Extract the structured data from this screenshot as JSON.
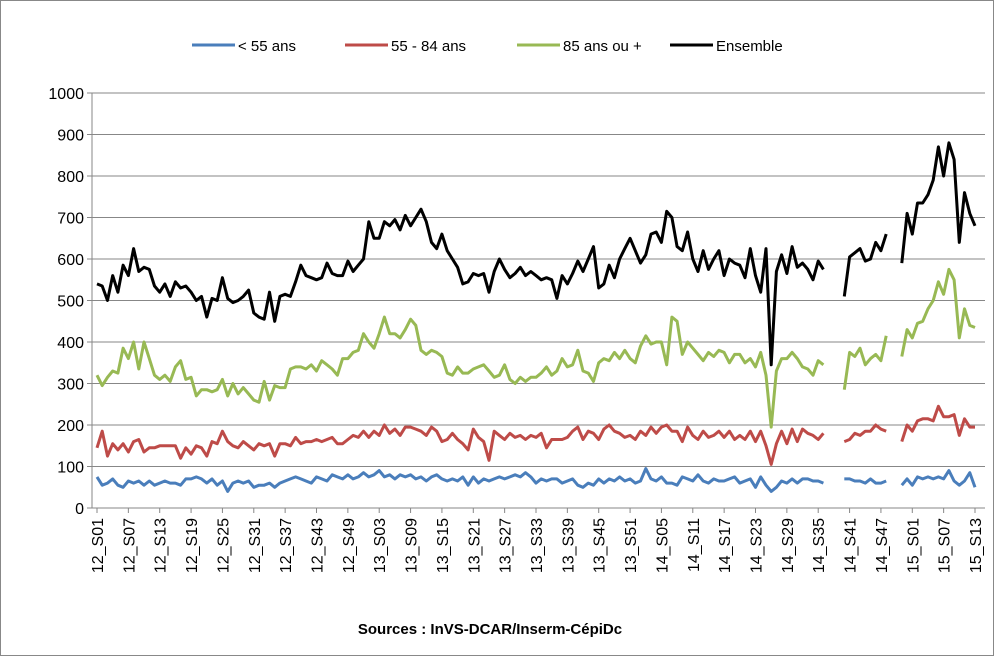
{
  "chart_data": {
    "type": "line",
    "source": "Sources : InVS-DCAR/Inserm-CépiDc",
    "categories": [
      "12_S01",
      null,
      null,
      null,
      null,
      null,
      "12_S07",
      null,
      null,
      null,
      null,
      null,
      "12_S13",
      null,
      null,
      null,
      null,
      null,
      "12_S19",
      null,
      null,
      null,
      null,
      null,
      "12_S25",
      null,
      null,
      null,
      null,
      null,
      "12_S31",
      null,
      null,
      null,
      null,
      null,
      "12_S37",
      null,
      null,
      null,
      null,
      null,
      "12_S43",
      null,
      null,
      null,
      null,
      null,
      "12_S49",
      null,
      null,
      null,
      null,
      null,
      "13_S03",
      null,
      null,
      null,
      null,
      null,
      "13_S09",
      null,
      null,
      null,
      null,
      null,
      "13_S15",
      null,
      null,
      null,
      null,
      null,
      "13_S21",
      null,
      null,
      null,
      null,
      null,
      "13_S27",
      null,
      null,
      null,
      null,
      null,
      "13_S33",
      null,
      null,
      null,
      null,
      null,
      "13_S39",
      null,
      null,
      null,
      null,
      null,
      "13_S45",
      null,
      null,
      null,
      null,
      null,
      "13_S51",
      null,
      null,
      null,
      null,
      null,
      "14_S05",
      null,
      null,
      null,
      null,
      null,
      "14_S11",
      null,
      null,
      null,
      null,
      null,
      "14_S17",
      null,
      null,
      null,
      null,
      null,
      "14_S23",
      null,
      null,
      null,
      null,
      null,
      "14_S29",
      null,
      null,
      null,
      null,
      null,
      "14_S35",
      null,
      null,
      null,
      null,
      null,
      "14_S41",
      null,
      null,
      null,
      null,
      null,
      "14_S47",
      null,
      null,
      null,
      null,
      null,
      "15_S01",
      null,
      null,
      null,
      null,
      null,
      "15_S07",
      null,
      null,
      null,
      null,
      null,
      "15_S13"
    ],
    "series": [
      {
        "name": "< 55 ans",
        "color": "#4a7ebb",
        "values": [
          75,
          55,
          60,
          70,
          55,
          50,
          65,
          60,
          65,
          55,
          65,
          55,
          60,
          65,
          60,
          60,
          55,
          70,
          70,
          75,
          70,
          60,
          70,
          55,
          65,
          40,
          60,
          65,
          60,
          65,
          50,
          55,
          55,
          60,
          50,
          60,
          65,
          70,
          75,
          70,
          65,
          60,
          75,
          70,
          65,
          80,
          75,
          70,
          80,
          70,
          75,
          85,
          75,
          80,
          90,
          75,
          80,
          70,
          80,
          75,
          80,
          70,
          75,
          65,
          75,
          80,
          70,
          65,
          70,
          65,
          75,
          55,
          75,
          60,
          70,
          65,
          70,
          75,
          70,
          75,
          80,
          75,
          85,
          75,
          60,
          70,
          65,
          70,
          70,
          60,
          65,
          70,
          55,
          50,
          60,
          55,
          70,
          60,
          70,
          65,
          75,
          65,
          70,
          60,
          65,
          95,
          70,
          65,
          75,
          60,
          60,
          55,
          75,
          70,
          65,
          80,
          65,
          60,
          70,
          65,
          65,
          70,
          75,
          60,
          65,
          70,
          50,
          75,
          55,
          40,
          50,
          65,
          60,
          70,
          60,
          70,
          70,
          65,
          65,
          60,
          null,
          null,
          null,
          70,
          70,
          65,
          65,
          60,
          70,
          60,
          60,
          65,
          null,
          null,
          55,
          70,
          55,
          75,
          70,
          75,
          70,
          75,
          70,
          90,
          65,
          55,
          65,
          85,
          50
        ]
      },
      {
        "name": "55 - 84 ans",
        "color": "#be4b48",
        "values": [
          145,
          185,
          125,
          155,
          140,
          155,
          135,
          160,
          165,
          135,
          145,
          145,
          150,
          150,
          150,
          150,
          120,
          145,
          130,
          150,
          145,
          125,
          160,
          155,
          185,
          160,
          150,
          145,
          160,
          150,
          140,
          155,
          150,
          155,
          125,
          155,
          155,
          150,
          170,
          155,
          160,
          160,
          165,
          160,
          165,
          170,
          155,
          155,
          165,
          175,
          170,
          185,
          170,
          185,
          175,
          200,
          180,
          190,
          175,
          195,
          195,
          190,
          185,
          175,
          195,
          185,
          160,
          165,
          180,
          165,
          155,
          140,
          190,
          170,
          160,
          115,
          185,
          175,
          165,
          180,
          170,
          175,
          165,
          175,
          170,
          180,
          145,
          165,
          165,
          165,
          170,
          185,
          195,
          165,
          185,
          180,
          165,
          190,
          200,
          185,
          180,
          170,
          175,
          165,
          185,
          175,
          195,
          180,
          195,
          200,
          185,
          185,
          160,
          195,
          175,
          165,
          185,
          170,
          175,
          185,
          170,
          185,
          165,
          175,
          165,
          185,
          160,
          185,
          150,
          105,
          155,
          185,
          155,
          190,
          160,
          190,
          180,
          175,
          165,
          180,
          null,
          null,
          null,
          160,
          165,
          180,
          175,
          185,
          185,
          200,
          190,
          185,
          null,
          null,
          160,
          200,
          185,
          210,
          215,
          215,
          210,
          245,
          220,
          220,
          225,
          175,
          215,
          195,
          195
        ]
      },
      {
        "name": "85 ans ou +",
        "color": "#98b954",
        "values": [
          320,
          295,
          315,
          330,
          325,
          385,
          360,
          400,
          335,
          400,
          360,
          320,
          310,
          320,
          305,
          340,
          355,
          310,
          315,
          270,
          285,
          285,
          280,
          285,
          310,
          270,
          300,
          275,
          290,
          275,
          260,
          255,
          305,
          260,
          295,
          290,
          290,
          335,
          340,
          340,
          335,
          345,
          330,
          355,
          345,
          335,
          320,
          360,
          360,
          375,
          380,
          420,
          400,
          385,
          420,
          460,
          420,
          420,
          410,
          430,
          455,
          440,
          380,
          370,
          380,
          375,
          365,
          325,
          320,
          340,
          325,
          325,
          335,
          340,
          345,
          330,
          315,
          320,
          345,
          310,
          300,
          315,
          305,
          315,
          315,
          325,
          340,
          320,
          330,
          360,
          340,
          345,
          380,
          330,
          325,
          305,
          350,
          360,
          355,
          375,
          360,
          380,
          360,
          350,
          390,
          415,
          395,
          400,
          400,
          345,
          460,
          450,
          370,
          400,
          385,
          370,
          355,
          375,
          365,
          380,
          375,
          350,
          370,
          370,
          350,
          360,
          340,
          375,
          320,
          195,
          330,
          360,
          360,
          375,
          360,
          340,
          335,
          320,
          355,
          345,
          null,
          null,
          null,
          285,
          375,
          365,
          385,
          345,
          360,
          370,
          355,
          415,
          null,
          null,
          365,
          430,
          410,
          445,
          450,
          480,
          500,
          545,
          515,
          575,
          550,
          410,
          480,
          440,
          435
        ]
      },
      {
        "name": "Ensemble",
        "color": "#000000",
        "values": [
          540,
          535,
          500,
          560,
          520,
          585,
          560,
          625,
          570,
          580,
          575,
          535,
          520,
          540,
          510,
          545,
          530,
          535,
          520,
          500,
          510,
          460,
          505,
          500,
          555,
          505,
          495,
          500,
          510,
          525,
          470,
          460,
          455,
          520,
          450,
          510,
          515,
          510,
          545,
          585,
          560,
          555,
          550,
          555,
          590,
          565,
          560,
          560,
          595,
          570,
          585,
          600,
          690,
          650,
          650,
          690,
          680,
          695,
          670,
          705,
          680,
          700,
          720,
          690,
          640,
          625,
          660,
          620,
          600,
          580,
          540,
          545,
          565,
          560,
          565,
          520,
          570,
          600,
          575,
          555,
          565,
          580,
          560,
          570,
          560,
          550,
          555,
          550,
          505,
          560,
          540,
          565,
          595,
          570,
          600,
          630,
          530,
          540,
          585,
          555,
          600,
          625,
          650,
          620,
          590,
          610,
          660,
          665,
          640,
          715,
          700,
          630,
          620,
          665,
          600,
          570,
          620,
          575,
          600,
          620,
          560,
          600,
          590,
          585,
          555,
          625,
          560,
          520,
          625,
          345,
          570,
          610,
          565,
          630,
          580,
          590,
          575,
          550,
          595,
          575,
          null,
          null,
          null,
          510,
          605,
          615,
          625,
          595,
          600,
          640,
          620,
          660,
          null,
          null,
          590,
          710,
          660,
          735,
          735,
          755,
          790,
          870,
          800,
          880,
          840,
          640,
          760,
          710,
          680
        ]
      }
    ],
    "ylim": [
      0,
      1000
    ],
    "yticks": [
      0,
      100,
      200,
      300,
      400,
      500,
      600,
      700,
      800,
      900,
      1000
    ],
    "grid": true,
    "legend": "top"
  }
}
